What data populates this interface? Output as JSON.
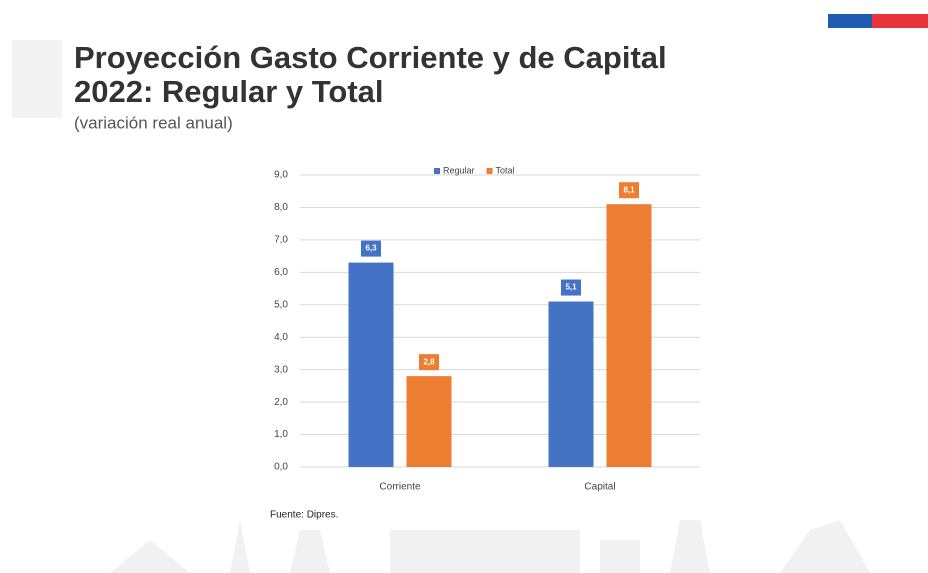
{
  "chart_data": {
    "type": "bar",
    "title_lines": [
      "Proyección Gasto Corriente y de Capital",
      "2022: Regular y Total"
    ],
    "subtitle": "(variación real anual)",
    "source": "Fuente: Dipres.",
    "categories": [
      "Corriente",
      "Capital"
    ],
    "series": [
      {
        "name": "Regular",
        "color": "#4472c4",
        "values": [
          6.3,
          5.1
        ],
        "value_labels": [
          "6,3",
          "5,1"
        ]
      },
      {
        "name": "Total",
        "color": "#ed7d31",
        "values": [
          2.8,
          8.1
        ],
        "value_labels": [
          "2,8",
          "8,1"
        ]
      }
    ],
    "ylim": [
      0,
      9
    ],
    "yticks": [
      {
        "value": 0,
        "label": "0,0"
      },
      {
        "value": 1,
        "label": "1,0"
      },
      {
        "value": 2,
        "label": "2,0"
      },
      {
        "value": 3,
        "label": "3,0"
      },
      {
        "value": 4,
        "label": "4,0"
      },
      {
        "value": 5,
        "label": "5,0"
      },
      {
        "value": 6,
        "label": "6,0"
      },
      {
        "value": 7,
        "label": "7,0"
      },
      {
        "value": 8,
        "label": "8,0"
      },
      {
        "value": 9,
        "label": "9,0"
      }
    ],
    "grid": true,
    "legend": "top"
  }
}
